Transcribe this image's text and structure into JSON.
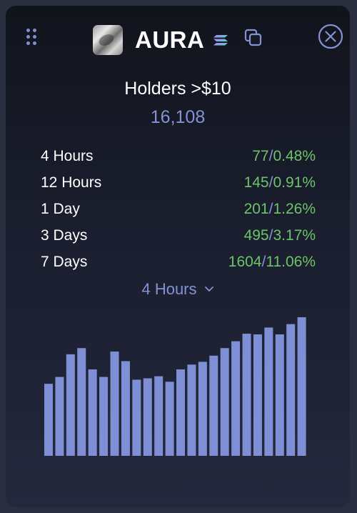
{
  "header": {
    "token_name": "AURA",
    "icons": {
      "grip": "drag-grip-icon",
      "chain": "solana-icon",
      "copy": "copy-icon",
      "close": "close-icon"
    }
  },
  "summary": {
    "title": "Holders >$10",
    "total": "16,108"
  },
  "stats": [
    {
      "label": "4 Hours",
      "count": "77",
      "separator": "/",
      "percent": "0.48%"
    },
    {
      "label": "12 Hours",
      "count": "145",
      "separator": "/",
      "percent": "0.91%"
    },
    {
      "label": "1 Day",
      "count": "201",
      "separator": "/",
      "percent": "1.26%"
    },
    {
      "label": "3 Days",
      "count": "495",
      "separator": "/",
      "percent": "3.17%"
    },
    {
      "label": "7 Days",
      "count": "1604",
      "separator": "/",
      "percent": "11.06%"
    }
  ],
  "period_selector": {
    "selected": "4 Hours"
  },
  "colors": {
    "accent": "#8392d4",
    "positive": "#6cc46a",
    "bar": "#7f8fd6",
    "text": "#ffffff"
  },
  "chart_data": {
    "type": "bar",
    "values": [
      105,
      115,
      148,
      157,
      126,
      115,
      152,
      138,
      111,
      113,
      116,
      108,
      126,
      133,
      137,
      146,
      157,
      167,
      178,
      177,
      187,
      177,
      192,
      202
    ],
    "ylim": [
      0,
      202
    ],
    "grid": false,
    "legend": "none"
  }
}
